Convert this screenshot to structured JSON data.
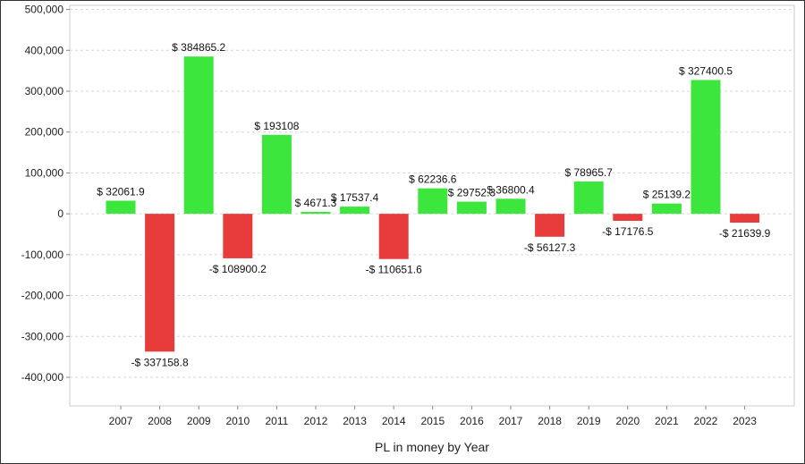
{
  "chart_data": {
    "type": "bar",
    "title": "",
    "xlabel": "PL in money by Year",
    "ylabel": "",
    "categories": [
      "2007",
      "2008",
      "2009",
      "2010",
      "2011",
      "2012",
      "2013",
      "2014",
      "2015",
      "2016",
      "2017",
      "2018",
      "2019",
      "2020",
      "2021",
      "2022",
      "2023"
    ],
    "values": [
      32061.9,
      -337158.8,
      384865.2,
      -108900.2,
      193108,
      4671.3,
      17537.4,
      -110651.6,
      62236.6,
      29752.3,
      36800.4,
      -56127.3,
      78965.7,
      -17176.5,
      25139.2,
      327400.5,
      -21639.9
    ],
    "data_labels": [
      "$ 32061.9",
      "-$ 337158.8",
      "$ 384865.2",
      "-$ 108900.2",
      "$ 193108",
      "$ 4671.3",
      "$ 17537.4",
      "-$ 110651.6",
      "$ 62236.6",
      "$ 29752.3",
      "$ 36800.4",
      "-$ 56127.3",
      "$ 78965.7",
      "-$ 17176.5",
      "$ 25139.2",
      "$ 327400.5",
      "-$ 21639.9"
    ],
    "ylim": [
      -470000,
      510000
    ],
    "yticks": [
      500000,
      400000,
      300000,
      200000,
      100000,
      0,
      -100000,
      -200000,
      -300000,
      -400000
    ],
    "ytick_labels": [
      "500,000",
      "400,000",
      "300,000",
      "200,000",
      "100,000",
      "0",
      "-100,000",
      "-200,000",
      "-300,000",
      "-400,000"
    ],
    "grid": true,
    "legend": "none",
    "colors": {
      "positive": "#3ce63c",
      "negative": "#e83b3b",
      "grid": "#d6d6d6",
      "axis": "#888888"
    }
  }
}
